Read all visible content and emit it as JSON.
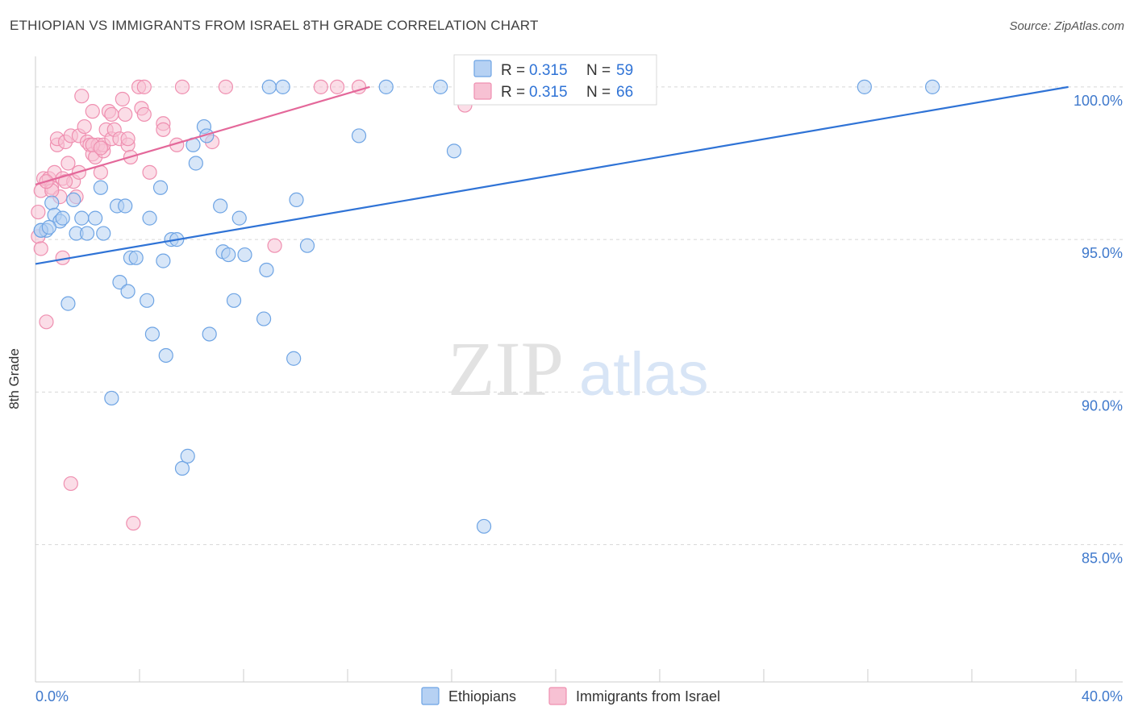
{
  "header": {
    "title": "ETHIOPIAN VS IMMIGRANTS FROM ISRAEL 8TH GRADE CORRELATION CHART",
    "source": "Source: ZipAtlas.com"
  },
  "watermark": {
    "zip": "ZIP",
    "atlas": "atlas"
  },
  "colors": {
    "blue": "#6ea4e4",
    "blue_fill": "#b6d1f3",
    "blue_line": "#2f73d6",
    "pink": "#ef8fb0",
    "pink_fill": "#f7c1d3",
    "pink_line": "#e4689a",
    "tick_text": "#3f79cc",
    "grid": "#d7d7d7"
  },
  "legend_top": {
    "rows": [
      {
        "r_label": "R =",
        "r_value": "0.315",
        "n_label": "N =",
        "n_value": "59"
      },
      {
        "r_label": "R =",
        "r_value": "0.315",
        "n_label": "N =",
        "n_value": "66"
      }
    ]
  },
  "chart_data": {
    "type": "scatter",
    "title": "ETHIOPIAN VS IMMIGRANTS FROM ISRAEL 8TH GRADE CORRELATION CHART",
    "xlabel": "",
    "ylabel": "8th Grade",
    "xlim": [
      0,
      40
    ],
    "ylim": [
      80.5,
      101
    ],
    "x_tick_labels": [
      "0.0%",
      "40.0%"
    ],
    "y_ticks": [
      85,
      90,
      95,
      100
    ],
    "y_tick_labels": [
      "85.0%",
      "90.0%",
      "95.0%",
      "100.0%"
    ],
    "grid": true,
    "legend": [
      "Ethiopians",
      "Immigrants from Israel"
    ],
    "series": [
      {
        "name": "Ethiopians",
        "r": 0.315,
        "n": 59,
        "trend": {
          "x": [
            0,
            38
          ],
          "y": [
            94.2,
            100
          ]
        },
        "points": [
          [
            0.2,
            95.3
          ],
          [
            0.4,
            95.3
          ],
          [
            0.6,
            96.2
          ],
          [
            0.7,
            95.8
          ],
          [
            0.9,
            95.6
          ],
          [
            1.0,
            95.7
          ],
          [
            1.4,
            96.3
          ],
          [
            1.5,
            95.2
          ],
          [
            1.7,
            95.7
          ],
          [
            1.9,
            95.2
          ],
          [
            2.2,
            95.7
          ],
          [
            2.4,
            96.7
          ],
          [
            2.5,
            95.2
          ],
          [
            2.8,
            89.8
          ],
          [
            3.0,
            96.1
          ],
          [
            3.1,
            93.6
          ],
          [
            3.3,
            96.1
          ],
          [
            3.4,
            93.3
          ],
          [
            3.5,
            94.4
          ],
          [
            3.7,
            94.4
          ],
          [
            4.1,
            93.0
          ],
          [
            4.2,
            95.7
          ],
          [
            4.3,
            91.9
          ],
          [
            4.6,
            96.7
          ],
          [
            4.7,
            94.3
          ],
          [
            4.8,
            91.2
          ],
          [
            5.0,
            95.0
          ],
          [
            5.2,
            95.0
          ],
          [
            5.4,
            87.5
          ],
          [
            5.6,
            87.9
          ],
          [
            5.8,
            98.1
          ],
          [
            5.9,
            97.5
          ],
          [
            6.2,
            98.7
          ],
          [
            6.3,
            98.4
          ],
          [
            6.4,
            91.9
          ],
          [
            6.8,
            96.1
          ],
          [
            6.9,
            94.6
          ],
          [
            7.1,
            94.5
          ],
          [
            7.3,
            93.0
          ],
          [
            7.5,
            95.7
          ],
          [
            7.7,
            94.5
          ],
          [
            8.4,
            92.4
          ],
          [
            8.5,
            94.0
          ],
          [
            8.6,
            100.0
          ],
          [
            9.1,
            100.0
          ],
          [
            9.5,
            91.1
          ],
          [
            9.6,
            96.3
          ],
          [
            10.0,
            94.8
          ],
          [
            11.9,
            98.4
          ],
          [
            12.9,
            100.0
          ],
          [
            14.9,
            100.0
          ],
          [
            15.4,
            97.9
          ],
          [
            16.5,
            85.6
          ],
          [
            21.0,
            100.0
          ],
          [
            30.5,
            100.0
          ],
          [
            33.0,
            100.0
          ],
          [
            0.2,
            95.3
          ],
          [
            1.2,
            92.9
          ],
          [
            0.5,
            95.4
          ]
        ]
      },
      {
        "name": "Immigrants from Israel",
        "r": 0.315,
        "n": 66,
        "trend": {
          "x": [
            0,
            12.3
          ],
          "y": [
            96.8,
            100
          ]
        },
        "points": [
          [
            0.1,
            95.9
          ],
          [
            0.1,
            95.1
          ],
          [
            0.2,
            96.6
          ],
          [
            0.2,
            94.7
          ],
          [
            0.3,
            97.0
          ],
          [
            0.4,
            92.3
          ],
          [
            0.5,
            97.0
          ],
          [
            0.6,
            96.7
          ],
          [
            0.7,
            97.2
          ],
          [
            0.8,
            98.1
          ],
          [
            0.8,
            98.3
          ],
          [
            0.9,
            96.4
          ],
          [
            1.0,
            97.0
          ],
          [
            1.0,
            94.4
          ],
          [
            1.1,
            98.2
          ],
          [
            1.2,
            97.5
          ],
          [
            1.3,
            98.4
          ],
          [
            1.3,
            87.0
          ],
          [
            1.4,
            96.9
          ],
          [
            1.5,
            96.4
          ],
          [
            1.6,
            98.4
          ],
          [
            1.6,
            97.2
          ],
          [
            1.7,
            99.7
          ],
          [
            1.8,
            98.7
          ],
          [
            1.9,
            98.2
          ],
          [
            2.0,
            98.1
          ],
          [
            2.1,
            99.2
          ],
          [
            2.1,
            97.8
          ],
          [
            2.2,
            97.7
          ],
          [
            2.3,
            98.1
          ],
          [
            2.4,
            97.2
          ],
          [
            2.5,
            97.9
          ],
          [
            2.5,
            98.1
          ],
          [
            2.6,
            98.6
          ],
          [
            2.7,
            99.2
          ],
          [
            2.8,
            98.3
          ],
          [
            2.8,
            99.1
          ],
          [
            2.9,
            98.6
          ],
          [
            3.1,
            98.3
          ],
          [
            3.2,
            99.6
          ],
          [
            3.3,
            99.1
          ],
          [
            3.4,
            98.1
          ],
          [
            3.4,
            98.3
          ],
          [
            3.5,
            97.7
          ],
          [
            3.6,
            85.7
          ],
          [
            3.8,
            100.0
          ],
          [
            3.9,
            99.3
          ],
          [
            4.0,
            100.0
          ],
          [
            4.0,
            99.1
          ],
          [
            4.2,
            97.2
          ],
          [
            4.7,
            98.8
          ],
          [
            4.7,
            98.6
          ],
          [
            5.2,
            98.1
          ],
          [
            5.4,
            100.0
          ],
          [
            6.5,
            98.2
          ],
          [
            7.0,
            100.0
          ],
          [
            8.8,
            94.8
          ],
          [
            10.5,
            100.0
          ],
          [
            11.1,
            100.0
          ],
          [
            11.9,
            100.0
          ],
          [
            15.8,
            99.4
          ],
          [
            1.1,
            96.9
          ],
          [
            0.6,
            96.6
          ],
          [
            2.1,
            98.1
          ],
          [
            0.4,
            96.9
          ],
          [
            2.4,
            98.0
          ]
        ]
      }
    ]
  }
}
